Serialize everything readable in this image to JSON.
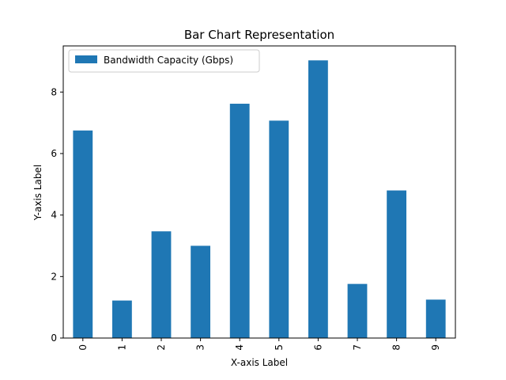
{
  "chart_data": {
    "type": "bar",
    "title": "Bar Chart Representation",
    "xlabel": "X-axis Label",
    "ylabel": "Y-axis Label",
    "categories": [
      "0",
      "1",
      "2",
      "3",
      "4",
      "5",
      "6",
      "7",
      "8",
      "9"
    ],
    "series": [
      {
        "name": "Bandwidth Capacity (Gbps)",
        "color": "#1f77b4",
        "values": [
          6.75,
          1.22,
          3.47,
          3.0,
          7.62,
          7.07,
          9.03,
          1.76,
          4.8,
          1.25
        ]
      }
    ],
    "ylim": [
      0,
      9.5
    ],
    "yticks": [
      0,
      2,
      4,
      6,
      8
    ],
    "grid": false,
    "legend": "upper-left"
  }
}
